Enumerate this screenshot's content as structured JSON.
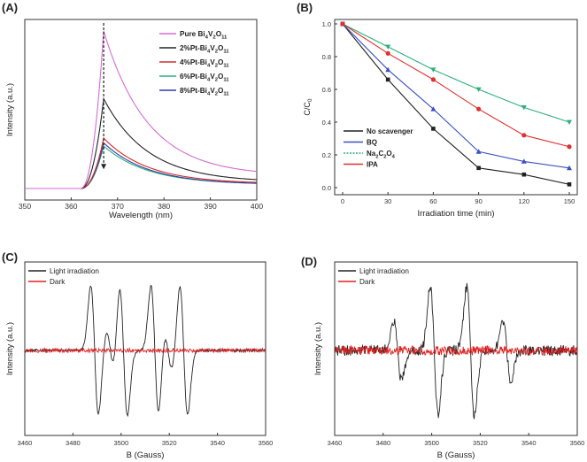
{
  "figure": {
    "panels": [
      "(A)",
      "(B)",
      "(C)",
      "(D)"
    ]
  },
  "chart_data": [
    {
      "panel": "(A)",
      "type": "line",
      "xlabel": "Wavelength (nm)",
      "ylabel": "Intensity (a.u.)",
      "xlim": [
        350,
        400
      ],
      "xticks": [
        "350",
        "360",
        "370",
        "380",
        "390",
        "400"
      ],
      "ylim": [
        0,
        1.1
      ],
      "y_ticks_shown": false,
      "peak_x": 367,
      "arrow": "dashed vertical arrow at peak pointing down",
      "legend_position": "top-right",
      "series": [
        {
          "name": "Pure Bi4V2O11",
          "color": "#d36cd3",
          "peak": 1.0,
          "tail": 0.08
        },
        {
          "name": "2%Pt-Bi4V2O11",
          "color": "#222222",
          "peak": 0.57,
          "tail": 0.04
        },
        {
          "name": "4%Pt-Bi4V2O11",
          "color": "#d62a2a",
          "peak": 0.32,
          "tail": 0.03
        },
        {
          "name": "6%Pt-Bi4V2O11",
          "color": "#2db07a",
          "peak": 0.27,
          "tail": 0.025
        },
        {
          "name": "8%Pt-Bi4V2O11",
          "color": "#2e3fa8",
          "peak": 0.29,
          "tail": 0.025
        }
      ]
    },
    {
      "panel": "(B)",
      "type": "line",
      "xlabel": "Irradiation time (min)",
      "ylabel": "C/C0",
      "x": [
        0,
        30,
        60,
        90,
        120,
        150
      ],
      "xlim": [
        0,
        150
      ],
      "ylim": [
        0,
        1.0
      ],
      "yticks": [
        "0.0",
        "0.2",
        "0.4",
        "0.6",
        "0.8",
        "1.0"
      ],
      "legend_position": "bottom-left",
      "series": [
        {
          "name": "No scavenger",
          "color": "#222222",
          "marker": "square",
          "values": [
            1.0,
            0.66,
            0.36,
            0.12,
            0.08,
            0.02
          ]
        },
        {
          "name": "BQ",
          "color": "#3a4fc2",
          "marker": "triangle-up",
          "values": [
            1.0,
            0.72,
            0.48,
            0.22,
            0.16,
            0.12
          ]
        },
        {
          "name": "Na2C2O4",
          "color": "#2db07a",
          "marker": "triangle-down",
          "values": [
            1.0,
            0.86,
            0.72,
            0.6,
            0.49,
            0.4
          ]
        },
        {
          "name": "IPA",
          "color": "#e03030",
          "marker": "circle",
          "values": [
            1.0,
            0.82,
            0.66,
            0.48,
            0.32,
            0.25
          ]
        }
      ]
    },
    {
      "panel": "(C)",
      "type": "line",
      "xlabel": "B (Gauss)",
      "ylabel": "Intensity (a.u.)",
      "xlim": [
        3460,
        3560
      ],
      "xticks": [
        "3460",
        "3480",
        "3500",
        "3520",
        "3540",
        "3560"
      ],
      "ylim": [
        -1.1,
        1.1
      ],
      "legend_position": "top-left",
      "series": [
        {
          "name": "Light irradiation",
          "color": "#222222",
          "peaks": [
            {
              "center": 3489,
              "amplitude": 1.0
            },
            {
              "center": 3501,
              "amplitude": 1.0
            },
            {
              "center": 3514,
              "amplitude": 1.0
            },
            {
              "center": 3526,
              "amplitude": 1.0
            },
            {
              "center": 3495.5,
              "amplitude": 0.3
            },
            {
              "center": 3519.5,
              "amplitude": 0.3
            }
          ],
          "noise": 0.02
        },
        {
          "name": "Dark",
          "color": "#e02020",
          "noise": 0.03
        }
      ]
    },
    {
      "panel": "(D)",
      "type": "line",
      "xlabel": "B (Gauss)",
      "ylabel": "Intensity (a.u.)",
      "xlim": [
        3460,
        3560
      ],
      "xticks": [
        "3460",
        "3480",
        "3500",
        "3520",
        "3540",
        "3560"
      ],
      "ylim": [
        -1.1,
        1.1
      ],
      "legend_position": "top-left",
      "series": [
        {
          "name": "Light irradiation",
          "color": "#222222",
          "peaks": [
            {
              "center": 3486,
              "amplitude": 0.45
            },
            {
              "center": 3501,
              "amplitude": 0.95
            },
            {
              "center": 3516,
              "amplitude": 0.95
            },
            {
              "center": 3531,
              "amplitude": 0.45
            }
          ],
          "noise": 0.08
        },
        {
          "name": "Dark",
          "color": "#e02020",
          "noise": 0.07
        }
      ]
    }
  ]
}
